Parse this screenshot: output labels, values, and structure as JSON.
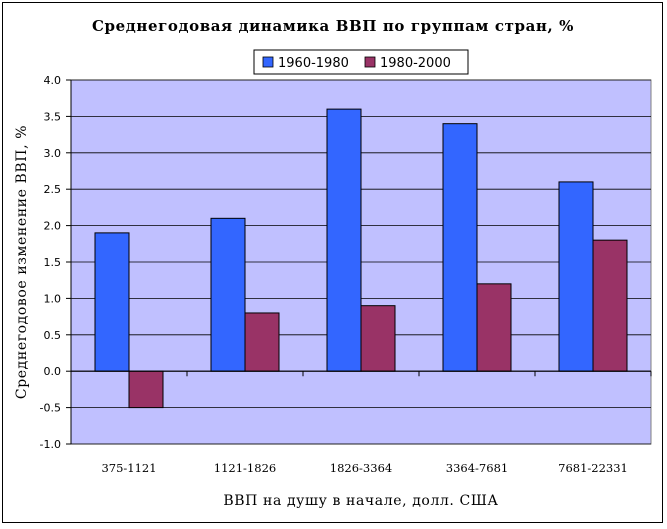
{
  "chart_data": {
    "type": "bar",
    "title": "Среднегодовая динамика ВВП по группам стран, %",
    "xlabel": "ВВП на душу в начале, долл. США",
    "ylabel": "Среднегодовое изменение ВВП, %",
    "categories": [
      "375-1121",
      "1121-1826",
      "1826-3364",
      "3364-7681",
      "7681-22331"
    ],
    "series": [
      {
        "name": "1960-1980",
        "color": "#3366FF",
        "values": [
          1.9,
          2.1,
          3.6,
          3.4,
          2.6
        ]
      },
      {
        "name": "1980-2000",
        "color": "#993366",
        "values": [
          -0.5,
          0.8,
          0.9,
          1.2,
          1.8
        ]
      }
    ],
    "ylim": [
      -1.0,
      4.0
    ],
    "yticks": [
      "4.0",
      "3.5",
      "3.0",
      "2.5",
      "2.0",
      "1.5",
      "1.0",
      "0.5",
      "0.0",
      "-0.5",
      "-1.0"
    ],
    "plot_background": "#C0C0FF",
    "grid": true,
    "legend_position": "top"
  }
}
